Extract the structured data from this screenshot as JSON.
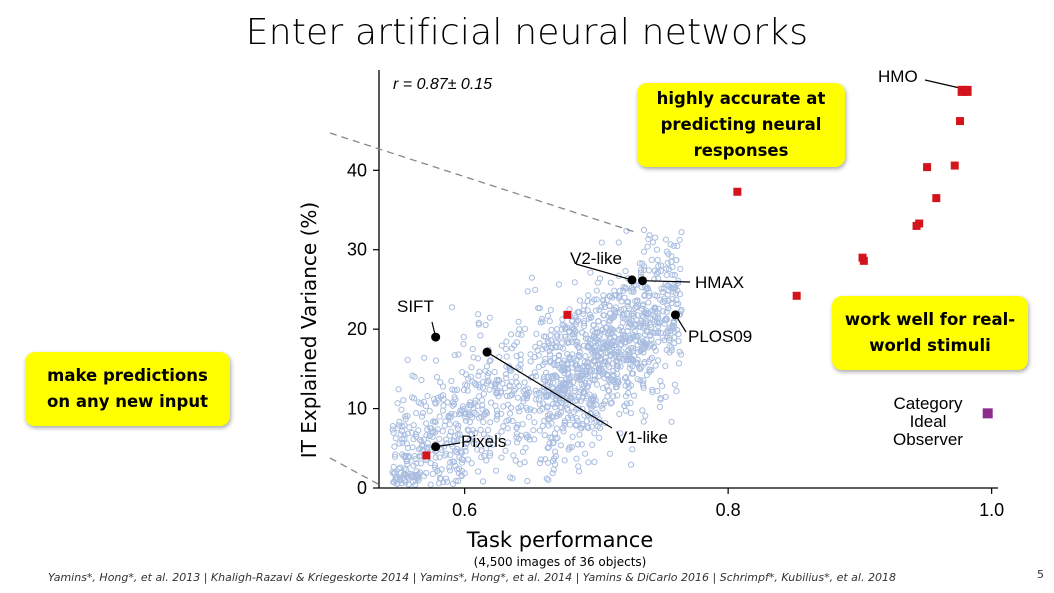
{
  "slide": {
    "title": "Enter artificial neural networks",
    "callouts": [
      {
        "lines": [
          "highly accurate at",
          "predicting neural",
          "responses"
        ]
      },
      {
        "lines": [
          "work well for real-",
          "world stimuli"
        ]
      },
      {
        "lines": [
          "make predictions",
          "on any new input"
        ]
      }
    ],
    "citations": "Yamins*, Hong*, et al. 2013 | Khaligh-Razavi & Kriegeskorte 2014 | Yamins*, Hong*, et al. 2014 | Yamins & DiCarlo 2016 | Schrimpf*, Kubilius*, et al. 2018",
    "page_number": "5"
  },
  "chart_data": {
    "type": "scatter",
    "xlabel": "Task performance",
    "xsublabel": "(4,500 images of 36 objects)",
    "ylabel": "IT Explained Variance (%)",
    "xlim": [
      0.535,
      1.02
    ],
    "ylim": [
      0,
      52
    ],
    "x_ticks": [
      0.6,
      0.8,
      1.0
    ],
    "x_tick_labels": [
      "0.6",
      "0.8",
      "1.0"
    ],
    "y_ticks": [
      0,
      10,
      20,
      30,
      40
    ],
    "y_tick_labels": [
      "0",
      "10",
      "20",
      "30",
      "40"
    ],
    "annotation_r": "r = 0.87± 0.15",
    "colors": {
      "cloud": "#a9bde0",
      "named_model": "#000000",
      "ann_model": "#d4141c",
      "ideal_observer": "#8e2c8e",
      "trend_line": "#888888"
    },
    "cloud_model_count": 1500,
    "labeled_models": [
      {
        "name": "SIFT",
        "x": 0.578,
        "y": 19.0
      },
      {
        "name": "V2-like",
        "x": 0.727,
        "y": 26.2
      },
      {
        "name": "HMAX",
        "x": 0.735,
        "y": 26.1
      },
      {
        "name": "PLOS09",
        "x": 0.76,
        "y": 21.8
      },
      {
        "name": "V1-like",
        "x": 0.617,
        "y": 17.1
      },
      {
        "name": "Pixels",
        "x": 0.578,
        "y": 5.2
      }
    ],
    "ann_models": [
      {
        "x": 0.807,
        "y": 37.3
      },
      {
        "x": 0.852,
        "y": 24.2
      },
      {
        "x": 0.678,
        "y": 21.8
      },
      {
        "x": 0.571,
        "y": 4.1
      },
      {
        "x": 0.902,
        "y": 29.0
      },
      {
        "x": 0.903,
        "y": 28.6
      },
      {
        "x": 0.943,
        "y": 33.0
      },
      {
        "x": 0.945,
        "y": 33.3
      },
      {
        "x": 0.951,
        "y": 40.4
      },
      {
        "x": 0.958,
        "y": 36.5
      },
      {
        "x": 0.972,
        "y": 40.6
      },
      {
        "x": 0.976,
        "y": 46.2
      },
      {
        "x": 0.978,
        "y": 50.0
      },
      {
        "x": 0.981,
        "y": 50.0
      }
    ],
    "hmo_label": "HMO",
    "ideal_observer": {
      "x": 0.997,
      "y": 9.4,
      "label_lines": [
        "Category",
        "Ideal",
        "Observer"
      ]
    }
  }
}
